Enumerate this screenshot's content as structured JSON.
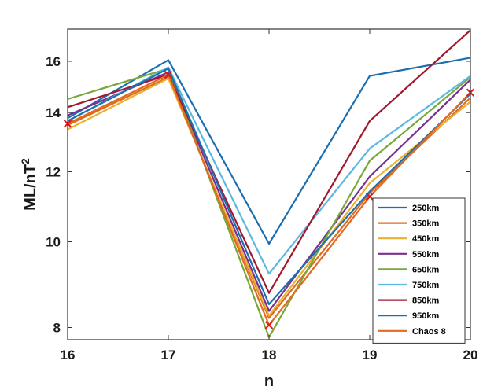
{
  "chart_data": {
    "type": "line",
    "x": [
      16,
      17,
      18,
      19,
      20
    ],
    "xlabel": "n",
    "ylabel": "ML/nT",
    "ylabel_superscript": "2",
    "xlim": [
      16,
      20
    ],
    "ylim": [
      7.75,
      17.4
    ],
    "y_scale": "log",
    "xticks": [
      "16",
      "17",
      "18",
      "19",
      "20"
    ],
    "yticks": [
      {
        "value": 8,
        "label": "8"
      },
      {
        "value": 10,
        "label": "10"
      },
      {
        "value": 12,
        "label": "12"
      },
      {
        "value": 14,
        "label": "14"
      },
      {
        "value": 16,
        "label": "16"
      }
    ],
    "grid": false,
    "legend_position": "bottom-right",
    "series": [
      {
        "name": "250km",
        "color": "#1b6fb0",
        "values": [
          13.8,
          16.05,
          9.95,
          15.4,
          16.15
        ]
      },
      {
        "name": "350km",
        "color": "#e06a20",
        "values": [
          13.55,
          15.35,
          8.2,
          11.35,
          14.55
        ]
      },
      {
        "name": "450km",
        "color": "#ebb02c",
        "values": [
          13.4,
          15.3,
          8.25,
          11.65,
          14.4
        ]
      },
      {
        "name": "550km",
        "color": "#7b2f8e",
        "values": [
          13.9,
          15.55,
          8.35,
          11.85,
          15.25
        ]
      },
      {
        "name": "650km",
        "color": "#79a83a",
        "values": [
          14.5,
          15.7,
          7.8,
          12.35,
          15.35
        ]
      },
      {
        "name": "750km",
        "color": "#5ab9e0",
        "values": [
          13.7,
          15.75,
          9.2,
          12.75,
          15.4
        ]
      },
      {
        "name": "850km",
        "color": "#a2192e",
        "values": [
          14.2,
          15.45,
          8.75,
          13.7,
          17.35
        ]
      },
      {
        "name": "950km",
        "color": "#1c70b0",
        "values": [
          13.7,
          15.7,
          8.5,
          11.4,
          14.7
        ]
      },
      {
        "name": "Chaos 8",
        "color": "#e06a20",
        "values": [
          13.6,
          15.45,
          8.05,
          11.25,
          14.75
        ],
        "marker": "x",
        "marker_color": "#e0181c"
      }
    ]
  }
}
